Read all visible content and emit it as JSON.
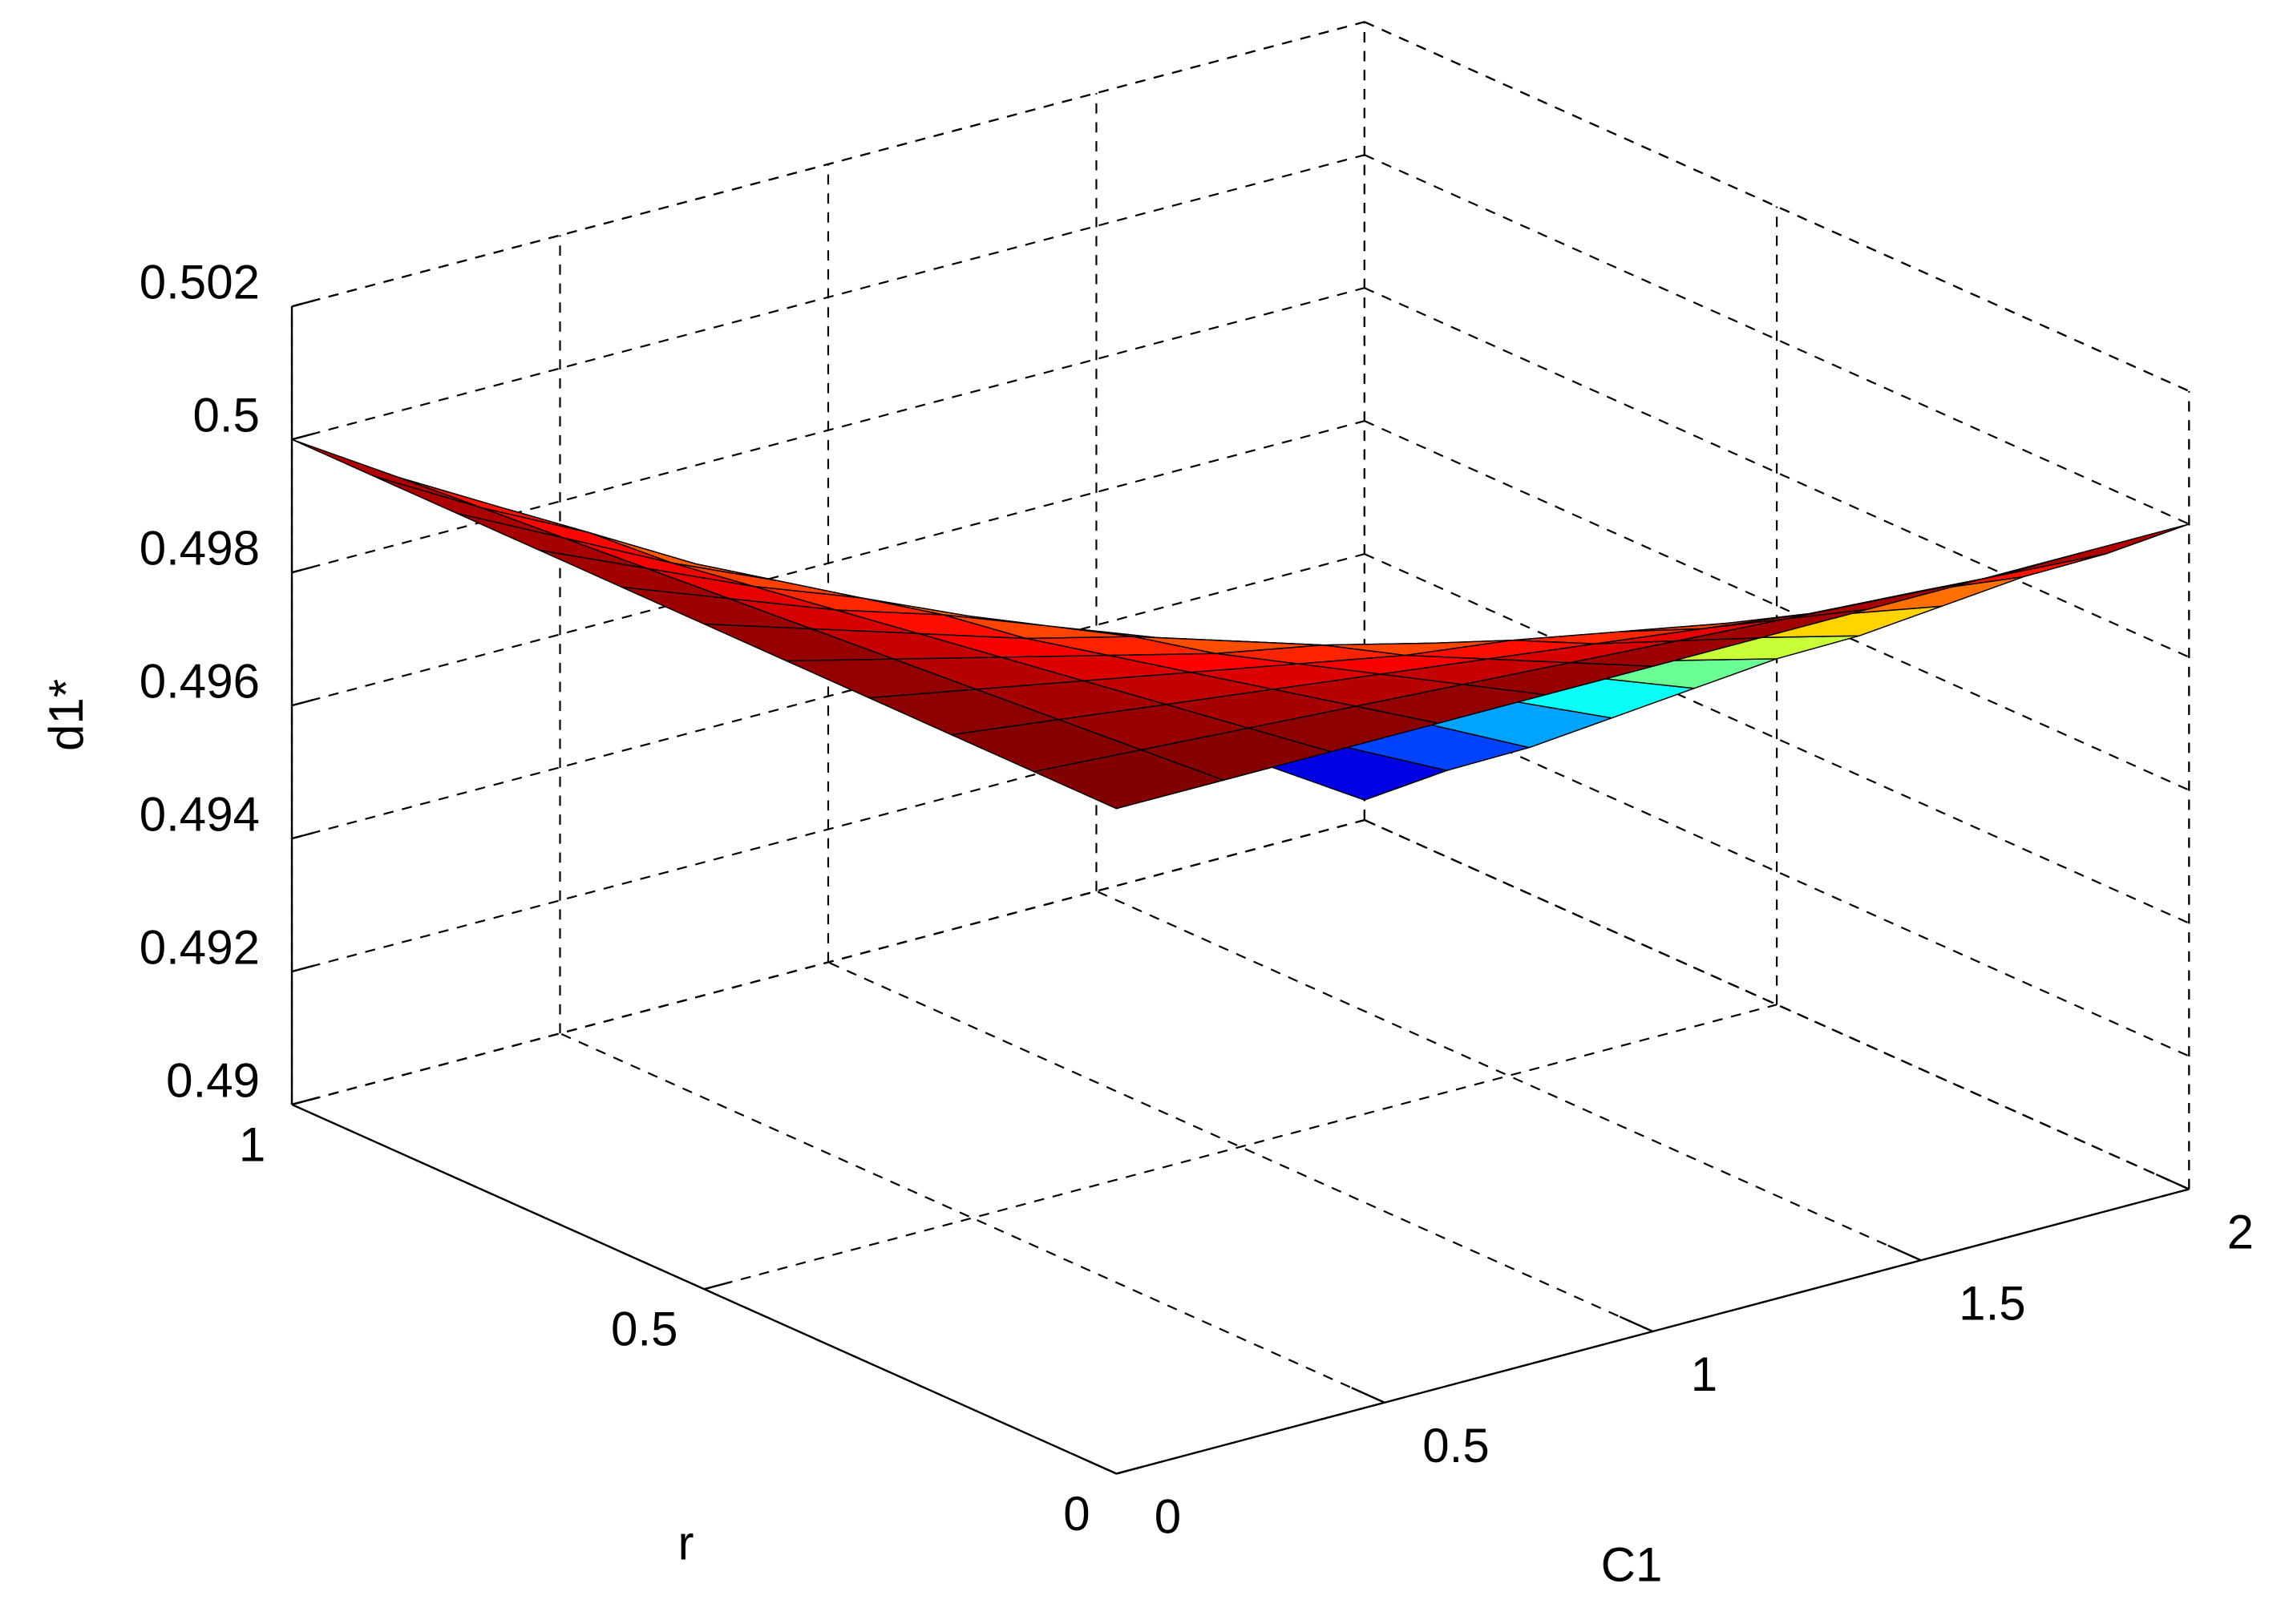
{
  "chart_data": {
    "type": "surface",
    "xlabel": "C1",
    "ylabel": "r",
    "zlabel": "d1*",
    "x": [
      0,
      0.2,
      0.4,
      0.6,
      0.8,
      1,
      1.2,
      1.4,
      1.6,
      1.8,
      2
    ],
    "y": [
      0,
      0.1,
      0.2,
      0.3,
      0.4,
      0.5,
      0.6,
      0.7,
      0.8,
      0.9,
      1
    ],
    "z": [
      [
        0.5,
        0.5,
        0.5,
        0.5,
        0.5,
        0.5,
        0.5,
        0.5,
        0.5,
        0.5,
        0.5
      ],
      [
        0.5,
        0.4999,
        0.4998,
        0.4997,
        0.4996,
        0.4995,
        0.4994,
        0.4993,
        0.4992,
        0.4991,
        0.499
      ],
      [
        0.5,
        0.4998,
        0.4996,
        0.4994,
        0.4992,
        0.499,
        0.4988,
        0.4986,
        0.4984,
        0.4983,
        0.4981
      ],
      [
        0.5,
        0.4997,
        0.4994,
        0.4991,
        0.4988,
        0.4985,
        0.4983,
        0.498,
        0.4977,
        0.4974,
        0.4971
      ],
      [
        0.5,
        0.4996,
        0.4992,
        0.4988,
        0.4984,
        0.4981,
        0.4977,
        0.4973,
        0.4969,
        0.4965,
        0.4961
      ],
      [
        0.5,
        0.4995,
        0.499,
        0.4985,
        0.4981,
        0.4976,
        0.4971,
        0.4966,
        0.4961,
        0.4956,
        0.4952
      ],
      [
        0.5,
        0.4994,
        0.4988,
        0.4983,
        0.4977,
        0.4971,
        0.4965,
        0.4959,
        0.4953,
        0.4948,
        0.4942
      ],
      [
        0.5,
        0.4993,
        0.4986,
        0.498,
        0.4973,
        0.4966,
        0.4959,
        0.4952,
        0.4946,
        0.4939,
        0.4932
      ],
      [
        0.5,
        0.4992,
        0.4984,
        0.4977,
        0.4969,
        0.4961,
        0.4953,
        0.4946,
        0.4938,
        0.493,
        0.4922
      ],
      [
        0.5,
        0.4991,
        0.4983,
        0.4974,
        0.4965,
        0.4956,
        0.4948,
        0.4939,
        0.493,
        0.4921,
        0.4913
      ],
      [
        0.5,
        0.499,
        0.4981,
        0.4971,
        0.4961,
        0.4952,
        0.4942,
        0.4932,
        0.4922,
        0.4913,
        0.4903
      ]
    ],
    "xlim": [
      0,
      2
    ],
    "xticks": [
      0,
      0.5,
      1,
      1.5,
      2
    ],
    "ylim": [
      0,
      1
    ],
    "yticks": [
      0,
      0.5,
      1
    ],
    "zlim": [
      0.49,
      0.502
    ],
    "zticks": [
      0.49,
      0.492,
      0.494,
      0.496,
      0.498,
      0.5,
      0.502
    ],
    "grid": true,
    "colormap": "jet"
  }
}
